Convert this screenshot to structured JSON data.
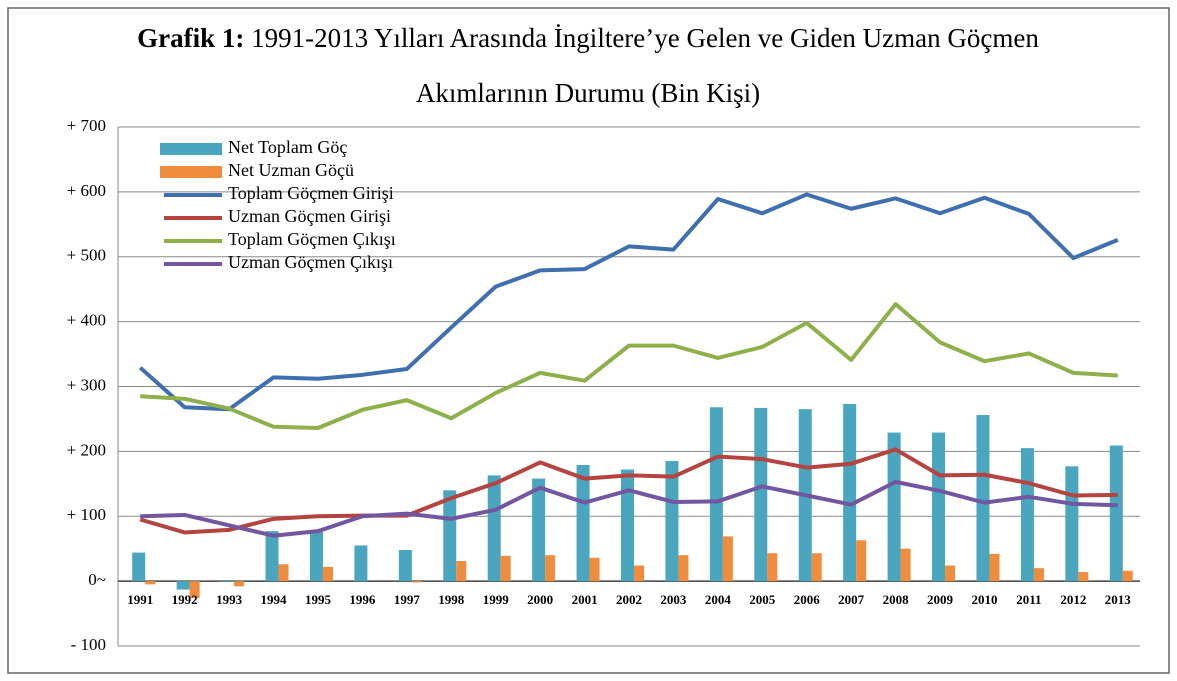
{
  "chart_data": {
    "type": "bar_line",
    "title_label": "Grafik 1:",
    "title": "1991-2013 Yılları Arasında İngiltere’ye Gelen ve Giden Uzman Göçmen Akımlarının Durumu (Bin Kişi)",
    "categories": [
      "1991",
      "1992",
      "1993",
      "1994",
      "1995",
      "1996",
      "1997",
      "1998",
      "1999",
      "2000",
      "2001",
      "2002",
      "2003",
      "2004",
      "2005",
      "2006",
      "2007",
      "2008",
      "2009",
      "2010",
      "2011",
      "2012",
      "2013"
    ],
    "series": [
      {
        "name": "Net Toplam Göç",
        "type": "bar",
        "color": "#4aa5bf",
        "values": [
          44,
          -13,
          -1,
          77,
          76,
          55,
          48,
          140,
          163,
          158,
          179,
          172,
          185,
          268,
          267,
          265,
          273,
          229,
          229,
          256,
          205,
          177,
          209
        ]
      },
      {
        "name": "Net Uzman Göçü",
        "type": "bar",
        "color": "#f08c3e",
        "values": [
          -5,
          -26,
          -8,
          26,
          22,
          0,
          -2,
          31,
          39,
          40,
          36,
          24,
          40,
          69,
          43,
          43,
          63,
          50,
          24,
          42,
          20,
          14,
          16
        ]
      },
      {
        "name": "Toplam Göçmen Girişi",
        "type": "line",
        "color": "#3f6fae",
        "values": [
          329,
          268,
          265,
          314,
          312,
          318,
          327,
          391,
          454,
          479,
          481,
          516,
          511,
          589,
          567,
          596,
          574,
          590,
          567,
          591,
          566,
          498,
          526
        ]
      },
      {
        "name": "Uzman Göçmen Girişi",
        "type": "line",
        "color": "#b5433f",
        "values": [
          95,
          75,
          79,
          96,
          100,
          101,
          101,
          128,
          151,
          183,
          158,
          163,
          161,
          192,
          188,
          175,
          181,
          203,
          163,
          164,
          151,
          132,
          133
        ]
      },
      {
        "name": "Toplam Göçmen Çıkışı",
        "type": "line",
        "color": "#8db04a",
        "values": [
          285,
          281,
          266,
          238,
          236,
          264,
          279,
          251,
          290,
          321,
          309,
          363,
          363,
          344,
          361,
          398,
          341,
          427,
          368,
          339,
          351,
          321,
          317
        ]
      },
      {
        "name": "Uzman Göçmen Çıkışı",
        "type": "line",
        "color": "#7356a0",
        "values": [
          100,
          102,
          86,
          70,
          77,
          100,
          104,
          96,
          110,
          144,
          121,
          140,
          122,
          123,
          146,
          132,
          118,
          153,
          139,
          121,
          130,
          119,
          117
        ]
      }
    ],
    "ylim": [
      -100,
      700
    ],
    "yticks": [
      {
        "value": -100,
        "label": "- 100"
      },
      {
        "value": 0,
        "label": "0~"
      },
      {
        "value": 100,
        "label": "+ 100"
      },
      {
        "value": 200,
        "label": "+ 200"
      },
      {
        "value": 300,
        "label": "+ 300"
      },
      {
        "value": 400,
        "label": "+ 400"
      },
      {
        "value": 500,
        "label": "+ 500"
      },
      {
        "value": 600,
        "label": "+ 600"
      },
      {
        "value": 700,
        "label": "+ 700"
      }
    ],
    "grid": true,
    "legend": "top-left"
  }
}
